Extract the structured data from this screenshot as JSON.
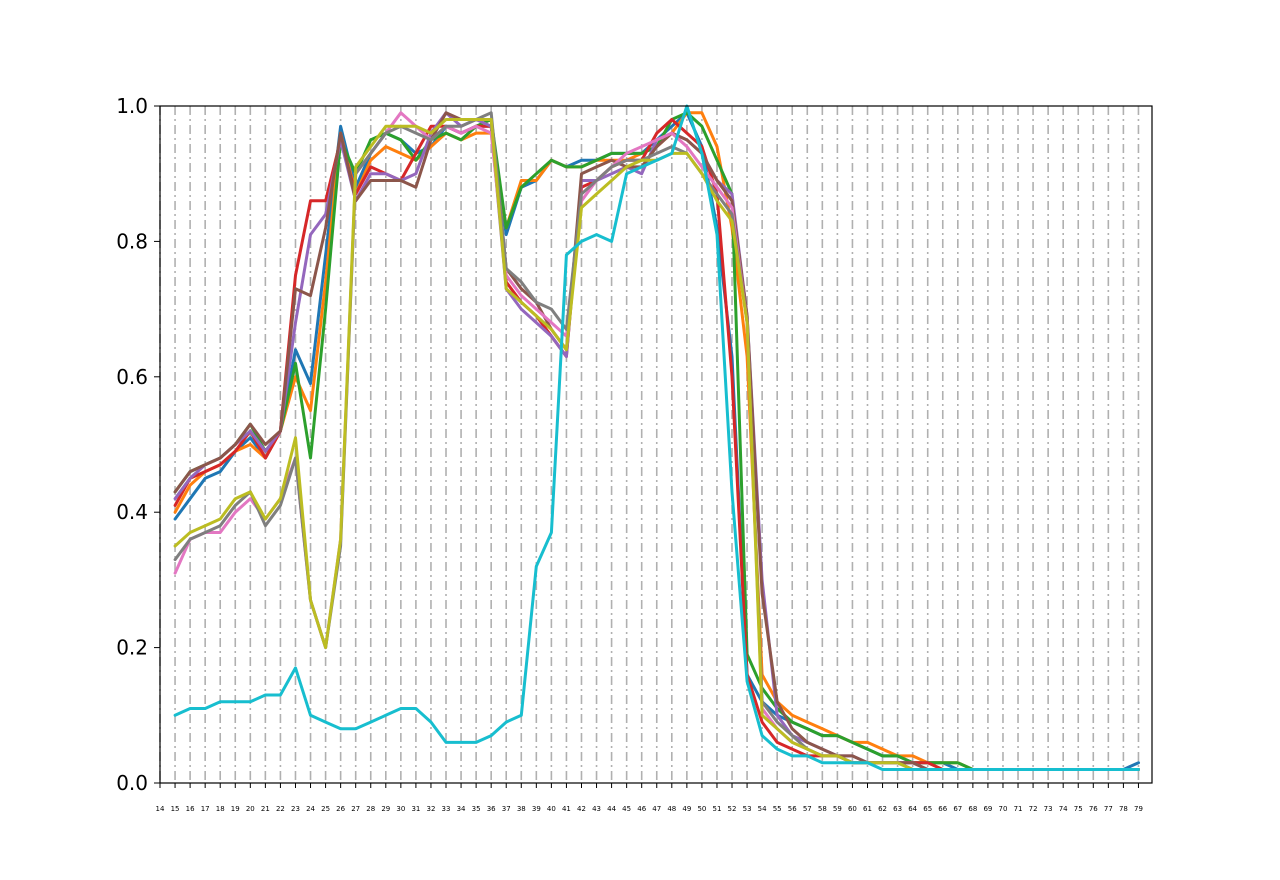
{
  "chart_data": {
    "type": "line",
    "title": "",
    "xlabel": "",
    "ylabel": "",
    "x": [
      15,
      16,
      17,
      18,
      19,
      20,
      21,
      22,
      23,
      24,
      25,
      26,
      27,
      28,
      29,
      30,
      31,
      32,
      33,
      34,
      35,
      36,
      37,
      38,
      39,
      40,
      41,
      42,
      43,
      44,
      45,
      46,
      47,
      48,
      49,
      50,
      51,
      52,
      53,
      54,
      55,
      56,
      57,
      58,
      59,
      60,
      61,
      62,
      63,
      64,
      65,
      66,
      67,
      68,
      69,
      70,
      71,
      72,
      73,
      74,
      75,
      76,
      77,
      78,
      79
    ],
    "xlim": [
      14,
      79.9
    ],
    "ylim": [
      0,
      1.0
    ],
    "x_ticks": [
      14,
      15,
      16,
      17,
      18,
      19,
      20,
      21,
      22,
      23,
      24,
      25,
      26,
      27,
      28,
      29,
      30,
      31,
      32,
      33,
      34,
      35,
      36,
      37,
      38,
      39,
      40,
      41,
      42,
      43,
      44,
      45,
      46,
      47,
      48,
      49,
      50,
      51,
      52,
      53,
      54,
      55,
      56,
      57,
      58,
      59,
      60,
      61,
      62,
      63,
      64,
      65,
      66,
      67,
      68,
      69,
      70,
      71,
      72,
      73,
      74,
      75,
      76,
      77,
      78,
      79
    ],
    "y_ticks": [
      "0.0",
      "0.2",
      "0.4",
      "0.6",
      "0.8",
      "1.0"
    ],
    "grid": "vertical dash-dot lines at each x tick",
    "legend": "none",
    "series": [
      {
        "color": "#1f77b4",
        "values": [
          0.39,
          0.42,
          0.45,
          0.46,
          0.49,
          0.51,
          0.48,
          0.52,
          0.64,
          0.59,
          0.78,
          0.97,
          0.88,
          0.93,
          0.96,
          0.95,
          0.93,
          0.94,
          0.97,
          0.96,
          0.97,
          0.97,
          0.81,
          0.88,
          0.89,
          0.92,
          0.91,
          0.92,
          0.92,
          0.93,
          0.93,
          0.93,
          0.95,
          0.97,
          0.99,
          0.94,
          0.82,
          0.63,
          0.16,
          0.12,
          0.1,
          0.09,
          0.08,
          0.07,
          0.07,
          0.06,
          0.05,
          0.04,
          0.04,
          0.03,
          0.03,
          0.03,
          0.02,
          0.02,
          0.02,
          0.02,
          0.02,
          0.02,
          0.02,
          0.02,
          0.02,
          0.02,
          0.02,
          0.02,
          0.03
        ]
      },
      {
        "color": "#ff7f0e",
        "values": [
          0.4,
          0.44,
          0.46,
          0.47,
          0.49,
          0.5,
          0.48,
          0.52,
          0.6,
          0.55,
          0.74,
          0.96,
          0.87,
          0.92,
          0.94,
          0.93,
          0.92,
          0.94,
          0.96,
          0.95,
          0.96,
          0.96,
          0.82,
          0.89,
          0.89,
          0.92,
          0.91,
          0.91,
          0.92,
          0.92,
          0.92,
          0.93,
          0.94,
          0.96,
          0.99,
          0.99,
          0.94,
          0.82,
          0.63,
          0.16,
          0.12,
          0.1,
          0.09,
          0.08,
          0.07,
          0.06,
          0.06,
          0.05,
          0.04,
          0.04,
          0.03,
          0.03,
          0.03,
          0.02,
          0.02,
          0.02,
          0.02,
          0.02,
          0.02,
          0.02,
          0.02,
          0.02,
          0.02,
          0.02,
          0.02
        ]
      },
      {
        "color": "#2ca02c",
        "values": [
          0.43,
          0.46,
          0.47,
          0.48,
          0.5,
          0.53,
          0.49,
          0.52,
          0.62,
          0.48,
          0.7,
          0.95,
          0.9,
          0.95,
          0.96,
          0.95,
          0.92,
          0.95,
          0.96,
          0.95,
          0.97,
          0.98,
          0.82,
          0.88,
          0.9,
          0.92,
          0.91,
          0.91,
          0.92,
          0.93,
          0.93,
          0.93,
          0.94,
          0.98,
          0.99,
          0.97,
          0.92,
          0.87,
          0.19,
          0.14,
          0.11,
          0.09,
          0.08,
          0.07,
          0.07,
          0.06,
          0.05,
          0.04,
          0.04,
          0.03,
          0.03,
          0.03,
          0.03,
          0.02,
          0.02,
          0.02,
          0.02,
          0.02,
          0.02,
          0.02,
          0.02,
          0.02,
          0.02,
          0.02,
          0.02
        ]
      },
      {
        "color": "#d62728",
        "values": [
          0.41,
          0.45,
          0.46,
          0.47,
          0.49,
          0.52,
          0.48,
          0.52,
          0.75,
          0.86,
          0.86,
          0.95,
          0.87,
          0.91,
          0.9,
          0.89,
          0.93,
          0.97,
          0.97,
          0.96,
          0.97,
          0.97,
          0.74,
          0.71,
          0.69,
          0.66,
          0.63,
          0.88,
          0.89,
          0.91,
          0.92,
          0.92,
          0.96,
          0.98,
          0.96,
          0.94,
          0.87,
          0.6,
          0.16,
          0.09,
          0.06,
          0.05,
          0.04,
          0.04,
          0.04,
          0.03,
          0.03,
          0.03,
          0.03,
          0.03,
          0.03,
          0.02,
          0.02,
          0.02,
          0.02,
          0.02,
          0.02,
          0.02,
          0.02,
          0.02,
          0.02,
          0.02,
          0.02,
          0.02,
          0.02
        ]
      },
      {
        "color": "#9467bd",
        "values": [
          0.42,
          0.45,
          0.47,
          0.48,
          0.5,
          0.52,
          0.49,
          0.52,
          0.68,
          0.81,
          0.84,
          0.95,
          0.86,
          0.9,
          0.9,
          0.89,
          0.9,
          0.96,
          0.99,
          0.97,
          0.98,
          0.97,
          0.73,
          0.7,
          0.68,
          0.66,
          0.63,
          0.89,
          0.89,
          0.9,
          0.91,
          0.9,
          0.95,
          0.96,
          0.95,
          0.93,
          0.89,
          0.87,
          0.69,
          0.3,
          0.1,
          0.07,
          0.06,
          0.05,
          0.04,
          0.04,
          0.03,
          0.03,
          0.03,
          0.03,
          0.02,
          0.02,
          0.02,
          0.02,
          0.02,
          0.02,
          0.02,
          0.02,
          0.02,
          0.02,
          0.02,
          0.02,
          0.02,
          0.02,
          0.02
        ]
      },
      {
        "color": "#8c564b",
        "values": [
          0.43,
          0.46,
          0.47,
          0.48,
          0.5,
          0.53,
          0.5,
          0.52,
          0.73,
          0.72,
          0.82,
          0.96,
          0.86,
          0.89,
          0.89,
          0.89,
          0.88,
          0.95,
          0.99,
          0.98,
          0.98,
          0.98,
          0.76,
          0.73,
          0.71,
          0.67,
          0.64,
          0.9,
          0.91,
          0.92,
          0.91,
          0.91,
          0.94,
          0.96,
          0.95,
          0.93,
          0.89,
          0.86,
          0.69,
          0.28,
          0.12,
          0.08,
          0.06,
          0.05,
          0.04,
          0.04,
          0.03,
          0.03,
          0.03,
          0.03,
          0.02,
          0.02,
          0.02,
          0.02,
          0.02,
          0.02,
          0.02,
          0.02,
          0.02,
          0.02,
          0.02,
          0.02,
          0.02,
          0.02,
          0.02
        ]
      },
      {
        "color": "#e377c2",
        "values": [
          0.31,
          0.36,
          0.37,
          0.37,
          0.4,
          0.42,
          0.39,
          0.42,
          0.48,
          0.27,
          0.2,
          0.36,
          0.9,
          0.93,
          0.96,
          0.99,
          0.97,
          0.95,
          0.97,
          0.96,
          0.97,
          0.96,
          0.75,
          0.72,
          0.7,
          0.68,
          0.66,
          0.86,
          0.89,
          0.91,
          0.93,
          0.94,
          0.95,
          0.96,
          0.94,
          0.91,
          0.88,
          0.85,
          0.68,
          0.11,
          0.08,
          0.06,
          0.05,
          0.04,
          0.04,
          0.03,
          0.03,
          0.03,
          0.03,
          0.02,
          0.02,
          0.02,
          0.02,
          0.02,
          0.02,
          0.02,
          0.02,
          0.02,
          0.02,
          0.02,
          0.02,
          0.02,
          0.02,
          0.02,
          0.02
        ]
      },
      {
        "color": "#7f7f7f",
        "values": [
          0.33,
          0.36,
          0.37,
          0.38,
          0.41,
          0.43,
          0.38,
          0.41,
          0.48,
          0.27,
          0.2,
          0.35,
          0.9,
          0.93,
          0.96,
          0.97,
          0.96,
          0.95,
          0.97,
          0.97,
          0.98,
          0.99,
          0.76,
          0.74,
          0.71,
          0.7,
          0.67,
          0.87,
          0.89,
          0.91,
          0.92,
          0.92,
          0.93,
          0.94,
          0.93,
          0.9,
          0.87,
          0.84,
          0.68,
          0.12,
          0.09,
          0.07,
          0.05,
          0.04,
          0.04,
          0.03,
          0.03,
          0.03,
          0.03,
          0.02,
          0.02,
          0.02,
          0.02,
          0.02,
          0.02,
          0.02,
          0.02,
          0.02,
          0.02,
          0.02,
          0.02,
          0.02,
          0.02,
          0.02,
          0.02
        ]
      },
      {
        "color": "#bcbd22",
        "values": [
          0.35,
          0.37,
          0.38,
          0.39,
          0.42,
          0.43,
          0.39,
          0.42,
          0.51,
          0.27,
          0.2,
          0.36,
          0.91,
          0.94,
          0.97,
          0.97,
          0.97,
          0.96,
          0.98,
          0.98,
          0.98,
          0.98,
          0.73,
          0.71,
          0.69,
          0.67,
          0.64,
          0.85,
          0.87,
          0.89,
          0.91,
          0.92,
          0.92,
          0.93,
          0.93,
          0.9,
          0.86,
          0.83,
          0.68,
          0.1,
          0.08,
          0.06,
          0.05,
          0.04,
          0.04,
          0.03,
          0.03,
          0.03,
          0.03,
          0.02,
          0.02,
          0.02,
          0.02,
          0.02,
          0.02,
          0.02,
          0.02,
          0.02,
          0.02,
          0.02,
          0.02,
          0.02,
          0.02,
          0.02,
          0.02
        ]
      },
      {
        "color": "#17becf",
        "values": [
          0.1,
          0.11,
          0.11,
          0.12,
          0.12,
          0.12,
          0.13,
          0.13,
          0.17,
          0.1,
          0.09,
          0.08,
          0.08,
          0.09,
          0.1,
          0.11,
          0.11,
          0.09,
          0.06,
          0.06,
          0.06,
          0.07,
          0.09,
          0.1,
          0.32,
          0.37,
          0.78,
          0.8,
          0.81,
          0.8,
          0.9,
          0.91,
          0.92,
          0.93,
          1.0,
          0.93,
          0.81,
          0.43,
          0.15,
          0.07,
          0.05,
          0.04,
          0.04,
          0.03,
          0.03,
          0.03,
          0.03,
          0.02,
          0.02,
          0.02,
          0.02,
          0.02,
          0.02,
          0.02,
          0.02,
          0.02,
          0.02,
          0.02,
          0.02,
          0.02,
          0.02,
          0.02,
          0.02,
          0.02,
          0.02
        ]
      }
    ]
  }
}
